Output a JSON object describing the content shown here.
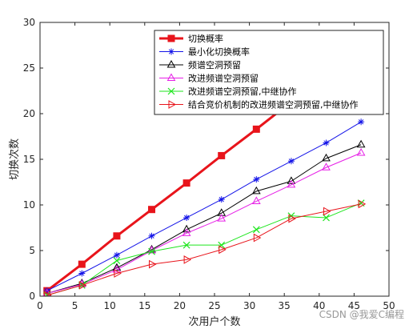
{
  "chart_data": {
    "type": "line",
    "xlabel": "次用户个数",
    "ylabel": "切换次数",
    "xlim": [
      0,
      50
    ],
    "ylim": [
      0,
      30
    ],
    "xticks": [
      0,
      5,
      10,
      15,
      20,
      25,
      30,
      35,
      40,
      45,
      50
    ],
    "yticks": [
      0,
      5,
      10,
      15,
      20,
      25,
      30
    ],
    "grid": false,
    "legend_position": "top-right",
    "x": [
      1,
      6,
      11,
      16,
      21,
      26,
      31,
      36,
      41,
      46
    ],
    "series": [
      {
        "name": "切换概率",
        "color": "#e8141b",
        "marker": "square",
        "width": 3,
        "values": [
          0.6,
          3.5,
          6.6,
          9.5,
          12.4,
          15.4,
          18.3,
          21.3,
          24.2,
          27.1
        ]
      },
      {
        "name": "最小化切换概率",
        "color": "#1414e8",
        "marker": "star",
        "width": 1,
        "values": [
          0.6,
          2.5,
          4.5,
          6.6,
          8.6,
          10.6,
          12.8,
          14.8,
          16.8,
          19.1
        ]
      },
      {
        "name": "频谱空洞预留",
        "color": "#000000",
        "marker": "triangle-up",
        "width": 1,
        "values": [
          0.3,
          1.4,
          3.1,
          5.1,
          7.3,
          9.1,
          11.5,
          12.6,
          15.1,
          16.6
        ]
      },
      {
        "name": "改进频谱空洞预留",
        "color": "#e61ee6",
        "marker": "triangle-up",
        "width": 1,
        "values": [
          0.3,
          1.3,
          2.9,
          5.0,
          6.9,
          8.5,
          10.4,
          12.2,
          14.1,
          15.7
        ]
      },
      {
        "name": "改进频谱空洞预留,中继协作",
        "color": "#1ee61e",
        "marker": "x",
        "width": 1,
        "values": [
          0.1,
          1.2,
          3.9,
          4.9,
          5.6,
          5.6,
          7.3,
          8.8,
          8.6,
          10.2
        ]
      },
      {
        "name": "结合竞价机制的改进频谱空洞预留,中继协作",
        "color": "#e8141b",
        "marker": "triangle-right",
        "width": 1,
        "values": [
          0.1,
          1.2,
          2.5,
          3.5,
          4.0,
          5.1,
          6.4,
          8.5,
          9.3,
          10.1
        ]
      }
    ]
  },
  "watermark": "CSDN @我爱C编程"
}
